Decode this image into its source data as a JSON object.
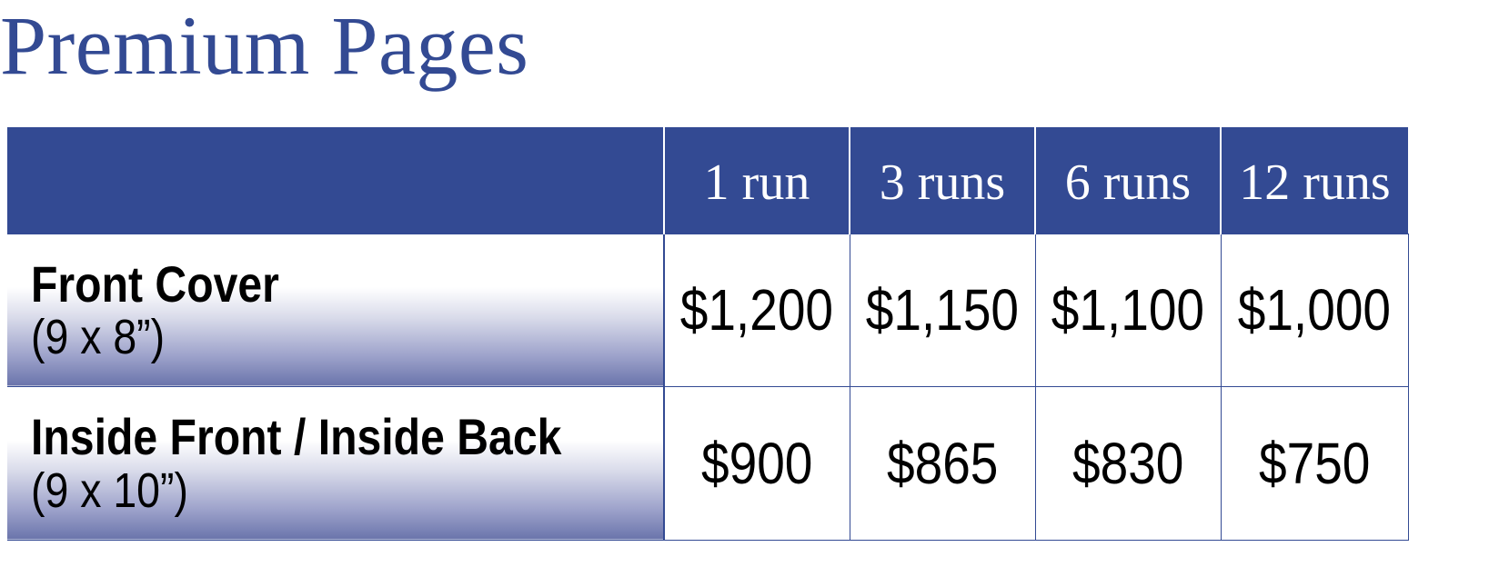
{
  "page": {
    "title": "Premium Pages"
  },
  "table": {
    "columns": [
      "1 run",
      "3 runs",
      "6 runs",
      "12 runs"
    ],
    "rows": [
      {
        "label": "Front Cover",
        "size": "(9 x 8”)",
        "prices": [
          "$1,200",
          "$1,150",
          "$1,100",
          "$1,000"
        ]
      },
      {
        "label": "Inside Front / Inside Back",
        "size": "(9 x 10”)",
        "prices": [
          "$900",
          "$865",
          "$830",
          "$750"
        ]
      }
    ]
  },
  "colors": {
    "brand_blue": "#334a93",
    "header_text": "#ffffff",
    "body_text": "#000000"
  }
}
